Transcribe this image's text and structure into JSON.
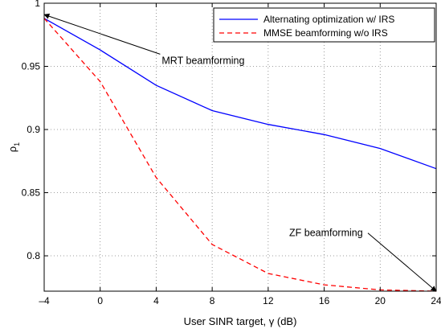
{
  "chart_data": {
    "type": "line",
    "title": "",
    "xlabel": "User SINR target, γ (dB)",
    "ylabel": "ρ",
    "ylabel_subscript": "1",
    "xlim": [
      -4,
      24
    ],
    "ylim": [
      0.772,
      1.0
    ],
    "xticks": [
      -4,
      0,
      4,
      8,
      12,
      16,
      20,
      24
    ],
    "xtick_labels": [
      "–4",
      "0",
      "4",
      "8",
      "12",
      "16",
      "20",
      "24"
    ],
    "yticks": [
      0.8,
      0.85,
      0.9,
      0.95,
      1.0
    ],
    "ytick_labels": [
      "0.8",
      "0.85",
      "0.9",
      "0.95",
      "1"
    ],
    "grid": true,
    "legend_position": "top-right",
    "series": [
      {
        "name": "Alternating optimization w/ IRS",
        "color": "#0000ff",
        "style": "solid",
        "x": [
          -4,
          0,
          4,
          8,
          12,
          16,
          20,
          24
        ],
        "y": [
          0.988,
          0.963,
          0.935,
          0.915,
          0.904,
          0.896,
          0.885,
          0.869
        ]
      },
      {
        "name": "MMSE beamforming w/o IRS",
        "color": "#ff0000",
        "style": "dashed",
        "x": [
          -4,
          0,
          4,
          8,
          12,
          16,
          20,
          24
        ],
        "y": [
          0.988,
          0.938,
          0.862,
          0.809,
          0.786,
          0.777,
          0.773,
          0.772
        ]
      }
    ],
    "annotations": [
      {
        "text": "MRT beamforming",
        "text_x": 4.4,
        "text_y": 0.952,
        "arrow_to_x": -4,
        "arrow_to_y": 0.991
      },
      {
        "text": "ZF beamforming",
        "text_x": 13.5,
        "text_y": 0.8155,
        "arrow_to_x": 24,
        "arrow_to_y": 0.772
      }
    ]
  }
}
